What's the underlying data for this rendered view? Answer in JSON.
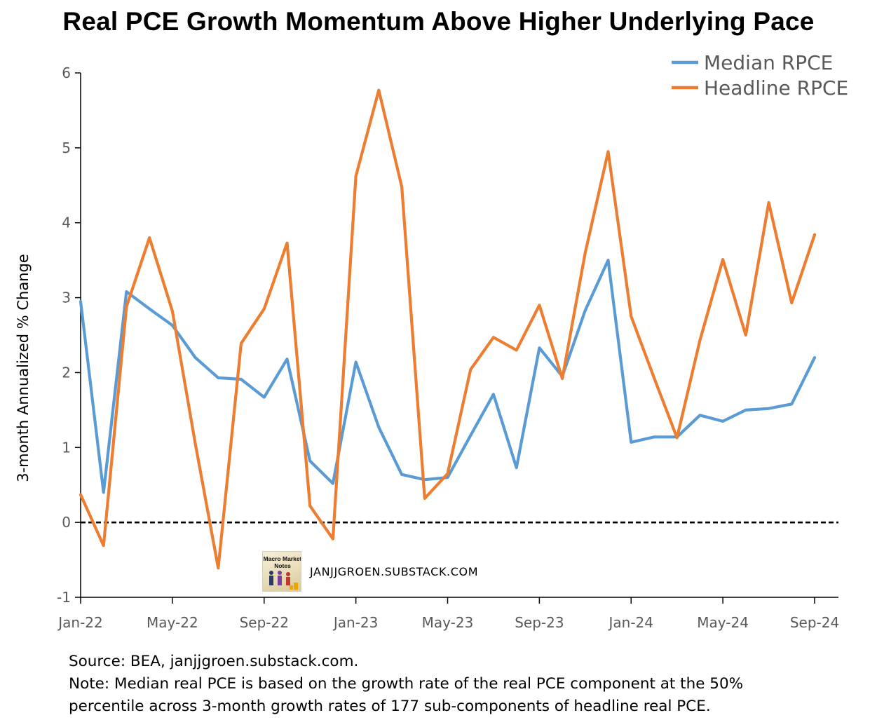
{
  "chart_data": {
    "type": "line",
    "title": "Real PCE Growth Momentum Above Higher Underlying Pace",
    "ylabel": "3-month Annualized % Change",
    "xlabel": "",
    "ylim": [
      -1,
      6
    ],
    "yticks": [
      -1,
      0,
      1,
      2,
      3,
      4,
      5,
      6
    ],
    "x": [
      "Jan-22",
      "Feb-22",
      "Mar-22",
      "Apr-22",
      "May-22",
      "Jun-22",
      "Jul-22",
      "Aug-22",
      "Sep-22",
      "Oct-22",
      "Nov-22",
      "Dec-22",
      "Jan-23",
      "Feb-23",
      "Mar-23",
      "Apr-23",
      "May-23",
      "Jun-23",
      "Jul-23",
      "Aug-23",
      "Sep-23",
      "Oct-23",
      "Nov-23",
      "Dec-23",
      "Jan-24",
      "Feb-24",
      "Mar-24",
      "Apr-24",
      "May-24",
      "Jun-24",
      "Jul-24",
      "Aug-24",
      "Sep-24"
    ],
    "xtick_labels": [
      "Jan-22",
      "May-22",
      "Sep-22",
      "Jan-23",
      "May-23",
      "Sep-23",
      "Jan-24",
      "May-24",
      "Sep-24"
    ],
    "series": [
      {
        "name": "Median RPCE",
        "color": "#5b9bd5",
        "values": [
          2.95,
          0.4,
          3.08,
          2.85,
          2.63,
          2.2,
          1.93,
          1.91,
          1.67,
          2.18,
          0.82,
          0.52,
          2.14,
          1.27,
          0.64,
          0.57,
          0.6,
          1.16,
          1.71,
          0.73,
          2.33,
          1.95,
          2.83,
          3.5,
          1.07,
          1.14,
          1.14,
          1.43,
          1.35,
          1.5,
          1.52,
          1.58,
          2.2
        ]
      },
      {
        "name": "Headline RPCE",
        "color": "#ed7d31",
        "values": [
          0.37,
          -0.31,
          2.88,
          3.8,
          2.82,
          1.05,
          -0.61,
          2.39,
          2.85,
          3.73,
          0.22,
          -0.22,
          4.62,
          5.77,
          4.48,
          0.32,
          0.65,
          2.04,
          2.47,
          2.3,
          2.9,
          1.92,
          3.6,
          4.95,
          2.75,
          1.93,
          1.13,
          2.43,
          3.51,
          2.5,
          4.27,
          2.93,
          3.84
        ]
      }
    ],
    "reference_line": {
      "y": 0,
      "style": "dashed",
      "color": "#000000"
    },
    "legend": "top-right",
    "grid": false
  },
  "watermark": {
    "logo_text": "Macro Market Notes",
    "text": "JANJJGROEN.SUBSTACK.COM"
  },
  "notes": {
    "source": "Source: BEA, janjjgroen.substack.com.",
    "note_line1": "Note: Median real PCE is based on the growth rate of the real PCE component at the 50%",
    "note_line2": "percentile across 3-month growth rates of 177 sub-components of headline real PCE."
  }
}
